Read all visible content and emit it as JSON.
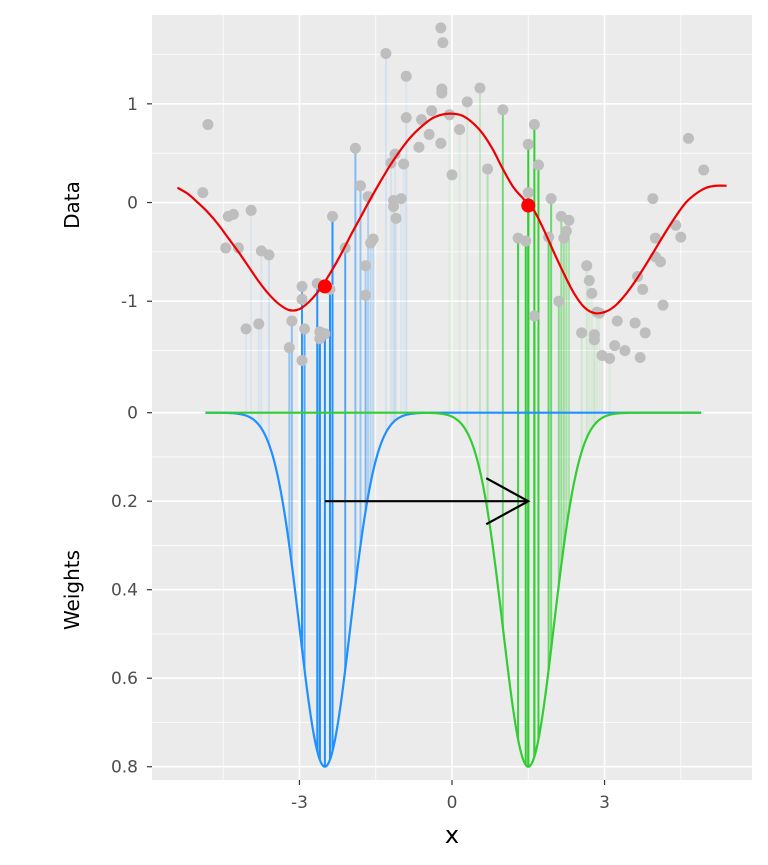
{
  "chart_data": {
    "type": "scatter",
    "xlabel": "x",
    "x_ticks": [
      -3,
      0,
      3
    ],
    "x_tick_labels": [
      "-3",
      "0",
      "3"
    ],
    "xlim": [
      -5.9,
      5.9
    ],
    "grid": true,
    "top_panel": {
      "ylabel": "Data",
      "ylim": [
        -1.95,
        1.9
      ],
      "y_ticks": [
        1,
        0,
        -1
      ],
      "y_tick_labels": [
        "1",
        "0",
        "-1"
      ],
      "points_color": "#bebebe",
      "curve": {
        "name": "",
        "color": "#ee0000",
        "x": [
          -5.4,
          -5.2,
          -5.0,
          -4.8,
          -4.6,
          -4.4,
          -4.2,
          -4.0,
          -3.8,
          -3.6,
          -3.4,
          -3.2,
          -3.0,
          -2.8,
          -2.6,
          -2.4,
          -2.2,
          -2.0,
          -1.8,
          -1.6,
          -1.4,
          -1.2,
          -1.0,
          -0.8,
          -0.6,
          -0.4,
          -0.2,
          0.0,
          0.2,
          0.4,
          0.6,
          0.8,
          1.0,
          1.2,
          1.4,
          1.6,
          1.8,
          2.0,
          2.2,
          2.4,
          2.6,
          2.8,
          3.0,
          3.2,
          3.4,
          3.6,
          3.8,
          4.0,
          4.2,
          4.4,
          4.6,
          4.8,
          5.0,
          5.2,
          5.4
        ],
        "y": [
          0.15,
          0.09,
          0.0,
          -0.1,
          -0.22,
          -0.36,
          -0.5,
          -0.65,
          -0.8,
          -0.93,
          -1.03,
          -1.09,
          -1.08,
          -1.0,
          -0.88,
          -0.72,
          -0.54,
          -0.34,
          -0.15,
          0.04,
          0.22,
          0.39,
          0.54,
          0.67,
          0.77,
          0.85,
          0.89,
          0.9,
          0.88,
          0.81,
          0.7,
          0.54,
          0.34,
          0.16,
          0.04,
          -0.07,
          -0.27,
          -0.5,
          -0.72,
          -0.92,
          -1.06,
          -1.12,
          -1.11,
          -1.05,
          -0.94,
          -0.8,
          -0.64,
          -0.47,
          -0.3,
          -0.14,
          0.0,
          0.09,
          0.15,
          0.17,
          0.17
        ]
      },
      "highlight_points": [
        {
          "x": -2.5,
          "y": -0.85,
          "color": "#ff0000"
        },
        {
          "x": 1.5,
          "y": -0.03,
          "color": "#ff0000"
        }
      ],
      "points": [
        [
          -4.9,
          0.1
        ],
        [
          -4.8,
          0.79
        ],
        [
          -4.45,
          -0.46
        ],
        [
          -4.4,
          -0.14
        ],
        [
          -4.3,
          -0.12
        ],
        [
          -4.2,
          -0.46
        ],
        [
          -4.05,
          -1.28
        ],
        [
          -3.95,
          -0.08
        ],
        [
          -3.8,
          -1.23
        ],
        [
          -3.75,
          -0.49
        ],
        [
          -3.6,
          -0.53
        ],
        [
          -3.2,
          -1.47
        ],
        [
          -3.15,
          -1.2
        ],
        [
          -2.95,
          -0.85
        ],
        [
          -2.95,
          -1.6
        ],
        [
          -2.95,
          -0.98
        ],
        [
          -2.9,
          -1.28
        ],
        [
          -2.65,
          -0.82
        ],
        [
          -2.6,
          -1.38
        ],
        [
          -2.6,
          -1.31
        ],
        [
          -2.5,
          -1.33
        ],
        [
          -2.4,
          -0.88
        ],
        [
          -2.35,
          -0.14
        ],
        [
          -2.1,
          -0.46
        ],
        [
          -1.9,
          0.55
        ],
        [
          -1.8,
          0.17
        ],
        [
          -1.7,
          -0.94
        ],
        [
          -1.7,
          -0.64
        ],
        [
          -1.65,
          0.06
        ],
        [
          -1.6,
          -0.41
        ],
        [
          -1.55,
          -0.37
        ],
        [
          -1.3,
          1.51
        ],
        [
          -1.2,
          0.4
        ],
        [
          -1.15,
          -0.04
        ],
        [
          -1.15,
          0.02
        ],
        [
          -1.12,
          0.49
        ],
        [
          -1.1,
          -0.16
        ],
        [
          -1.0,
          0.04
        ],
        [
          -0.95,
          0.39
        ],
        [
          -0.9,
          0.86
        ],
        [
          -0.9,
          1.28
        ],
        [
          -0.65,
          0.56
        ],
        [
          -0.6,
          0.84
        ],
        [
          -0.45,
          0.69
        ],
        [
          -0.4,
          0.93
        ],
        [
          -0.22,
          1.77
        ],
        [
          -0.22,
          0.6
        ],
        [
          -0.2,
          1.11
        ],
        [
          -0.2,
          1.15
        ],
        [
          -0.18,
          1.62
        ],
        [
          -0.05,
          0.89
        ],
        [
          0.0,
          0.28
        ],
        [
          0.15,
          0.74
        ],
        [
          0.3,
          1.02
        ],
        [
          0.55,
          1.16
        ],
        [
          0.7,
          0.34
        ],
        [
          1.0,
          0.94
        ],
        [
          1.3,
          -0.36
        ],
        [
          1.45,
          -0.39
        ],
        [
          1.5,
          0.59
        ],
        [
          1.5,
          0.1
        ],
        [
          1.62,
          0.79
        ],
        [
          1.62,
          -1.15
        ],
        [
          1.7,
          0.38
        ],
        [
          1.9,
          -0.35
        ],
        [
          1.95,
          0.04
        ],
        [
          2.1,
          -1.0
        ],
        [
          2.15,
          -0.14
        ],
        [
          2.2,
          -0.36
        ],
        [
          2.25,
          -0.29
        ],
        [
          2.3,
          -0.18
        ],
        [
          2.55,
          -1.32
        ],
        [
          2.65,
          -0.64
        ],
        [
          2.7,
          -0.79
        ],
        [
          2.75,
          -0.92
        ],
        [
          2.8,
          -1.34
        ],
        [
          2.8,
          -1.39
        ],
        [
          2.85,
          -1.11
        ],
        [
          2.9,
          -1.12
        ],
        [
          2.95,
          -1.55
        ],
        [
          3.1,
          -1.58
        ],
        [
          3.2,
          -1.45
        ],
        [
          3.25,
          -1.2
        ],
        [
          3.4,
          -1.5
        ],
        [
          3.6,
          -1.22
        ],
        [
          3.65,
          -0.75
        ],
        [
          3.7,
          -1.57
        ],
        [
          3.75,
          -0.88
        ],
        [
          3.8,
          -1.32
        ],
        [
          3.95,
          0.04
        ],
        [
          4.0,
          -0.55
        ],
        [
          4.0,
          -0.36
        ],
        [
          4.1,
          -0.6
        ],
        [
          4.15,
          -1.04
        ],
        [
          4.4,
          -0.23
        ],
        [
          4.5,
          -0.35
        ],
        [
          4.65,
          0.65
        ],
        [
          4.95,
          0.33
        ]
      ]
    },
    "bottom_panel": {
      "ylabel": "Weights",
      "ylim": [
        -0.04,
        0.83
      ],
      "y_ticks": [
        0.0,
        0.2,
        0.4,
        0.6,
        0.8
      ],
      "y_tick_labels": [
        "0",
        "0.2",
        "0.4",
        "0.6",
        "0.8"
      ],
      "series": [
        {
          "name": "",
          "color": "#1e90ff",
          "center": -2.5,
          "peak": 0.8,
          "sigma": 0.5
        },
        {
          "name": "",
          "color": "#32cd32",
          "center": 1.5,
          "peak": 0.8,
          "sigma": 0.5
        }
      ],
      "x_range": [
        -4.85,
        4.9
      ],
      "arrow": {
        "x_start": -2.5,
        "x_end": 1.5,
        "y": 0.2,
        "color": "#000000"
      }
    }
  }
}
